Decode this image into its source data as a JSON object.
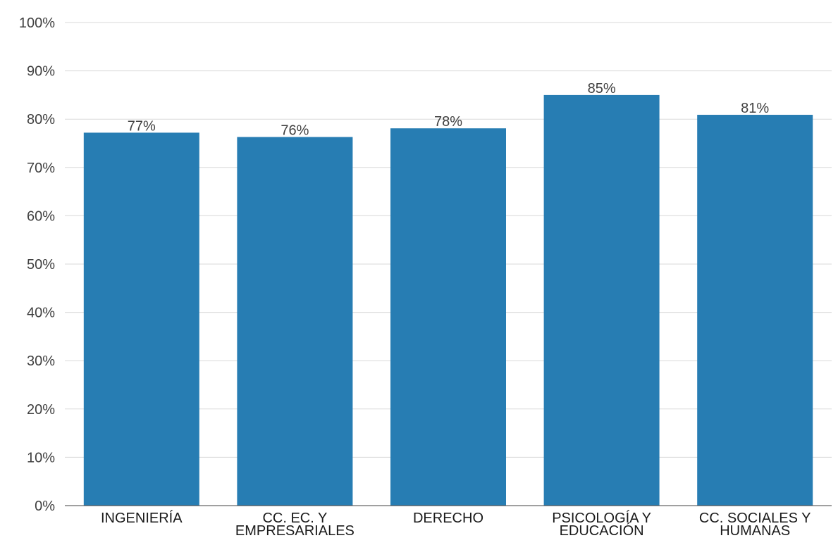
{
  "chart_data": {
    "type": "bar",
    "categories": [
      [
        "INGENIERÍA"
      ],
      [
        "CC. EC. Y",
        "EMPRESARIALES"
      ],
      [
        "DERECHO"
      ],
      [
        "PSICOLOGÍA Y",
        "EDUCACIÓN"
      ],
      [
        "CC. SOCIALES Y",
        "HUMANAS"
      ]
    ],
    "values": [
      77.2,
      76.3,
      78.1,
      85.0,
      80.9
    ],
    "data_labels": [
      "77%",
      "76%",
      "78%",
      "85%",
      "81%"
    ],
    "y_ticks": [
      0,
      10,
      20,
      30,
      40,
      50,
      60,
      70,
      80,
      90,
      100
    ],
    "y_tick_labels": [
      "0%",
      "10%",
      "20%",
      "30%",
      "40%",
      "50%",
      "60%",
      "70%",
      "80%",
      "90%",
      "100%"
    ],
    "ylim": [
      0,
      100
    ],
    "title": "",
    "xlabel": "",
    "ylabel": "",
    "grid": true,
    "legend": "none",
    "colors": {
      "bar": "#277db3",
      "grid": "#d9d9d9",
      "axis": "#404040"
    }
  }
}
